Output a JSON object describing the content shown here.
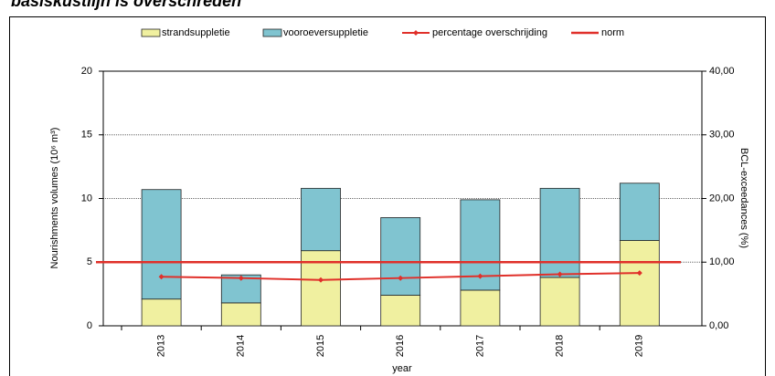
{
  "chart_data": {
    "type": "bar",
    "title": "basiskustlijn is overschreden",
    "categories": [
      "2013",
      "2014",
      "2015",
      "2016",
      "2017",
      "2018",
      "2019"
    ],
    "series": [
      {
        "name": "strandsuppletie",
        "color": "#f0f0a0",
        "values": [
          2.1,
          1.8,
          5.9,
          2.4,
          2.8,
          3.8,
          6.7
        ]
      },
      {
        "name": "vooroeversuppletie",
        "color": "#80c4d0",
        "values": [
          8.6,
          2.2,
          4.9,
          6.1,
          7.1,
          7.0,
          4.5
        ]
      },
      {
        "name": "percentage overschrijding",
        "color": "#e0302a",
        "axis": "y2",
        "values": [
          7.7,
          7.5,
          7.2,
          7.5,
          7.8,
          8.1,
          8.3
        ]
      }
    ],
    "norm": {
      "name": "norm",
      "color": "#e0302a",
      "value": 10,
      "axis": "y2"
    },
    "x_label": "year",
    "y_label": "Nourishments volumes (10⁶ m³)",
    "y2_label": "BCL-exceedances (%)",
    "ylim": [
      0,
      20
    ],
    "yticks": [
      0,
      5,
      10,
      15,
      20
    ],
    "y2lim": [
      0,
      40
    ],
    "y2ticks": [
      {
        "value": 0,
        "label": "0,00"
      },
      {
        "value": 10,
        "label": "10,00"
      },
      {
        "value": 20,
        "label": "20,00"
      },
      {
        "value": 30,
        "label": "30,00"
      },
      {
        "value": 40,
        "label": "40,00"
      }
    ],
    "grid": true
  }
}
